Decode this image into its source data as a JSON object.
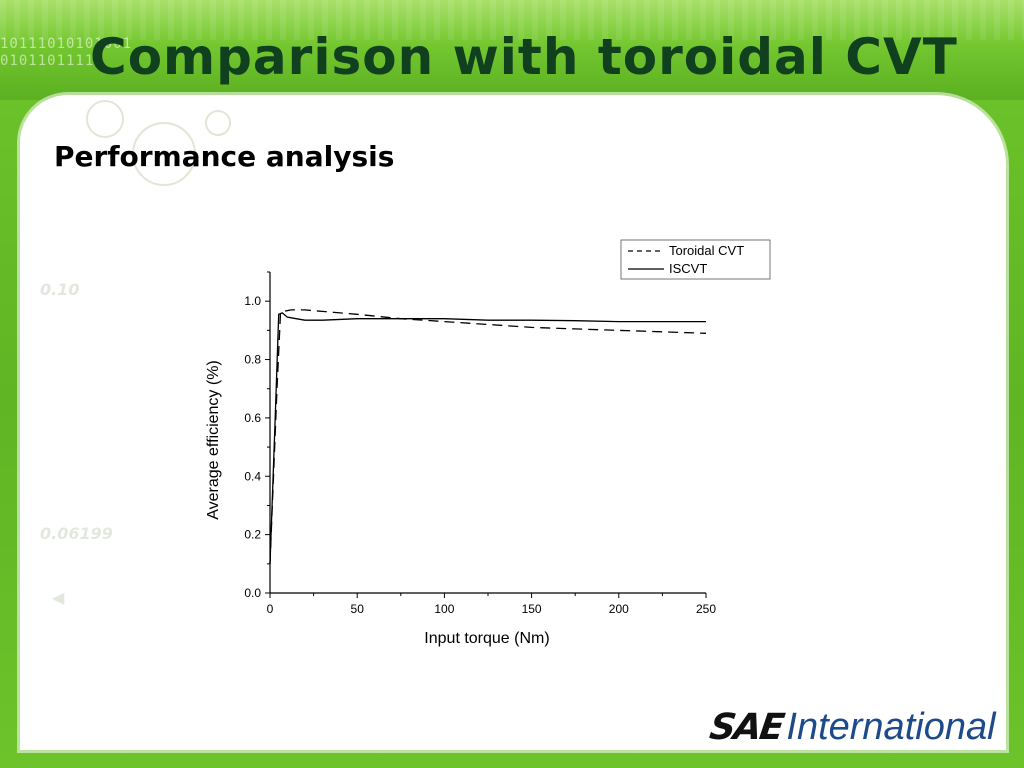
{
  "slide": {
    "title": "Comparison with toroidal CVT",
    "subtitle": "Performance analysis",
    "ghost_values": [
      "0.10",
      "0.06199"
    ],
    "binary_lines": [
      "10111010101001",
      "0101101111"
    ]
  },
  "logo": {
    "sae": "SAE",
    "international": "International"
  },
  "colors": {
    "green": "#6cc32a",
    "title": "#11401f",
    "logo_blue": "#1d4a8a"
  },
  "chart_data": {
    "type": "line",
    "xlabel": "Input torque (Nm)",
    "ylabel": "Average efficiency (%)",
    "xlim": [
      0,
      250
    ],
    "ylim": [
      0,
      1.1
    ],
    "xticks": [
      0,
      50,
      100,
      150,
      200,
      250
    ],
    "yticks": [
      0.0,
      0.2,
      0.4,
      0.6,
      0.8,
      1.0
    ],
    "legend_position": "top-right",
    "series": [
      {
        "name": "Toroidal CVT",
        "style": "dashed",
        "x": [
          0,
          4,
          6,
          8,
          12,
          20,
          30,
          50,
          75,
          100,
          125,
          150,
          175,
          200,
          225,
          250
        ],
        "y": [
          0.1,
          0.7,
          0.96,
          0.965,
          0.97,
          0.97,
          0.965,
          0.955,
          0.94,
          0.93,
          0.92,
          0.91,
          0.905,
          0.9,
          0.895,
          0.89
        ]
      },
      {
        "name": "ISCVT",
        "style": "solid",
        "x": [
          0,
          3,
          5,
          7,
          10,
          15,
          20,
          30,
          50,
          75,
          100,
          125,
          150,
          175,
          200,
          225,
          250
        ],
        "y": [
          0.1,
          0.6,
          0.955,
          0.96,
          0.945,
          0.94,
          0.935,
          0.935,
          0.94,
          0.94,
          0.94,
          0.935,
          0.935,
          0.933,
          0.93,
          0.93,
          0.93
        ]
      }
    ]
  }
}
